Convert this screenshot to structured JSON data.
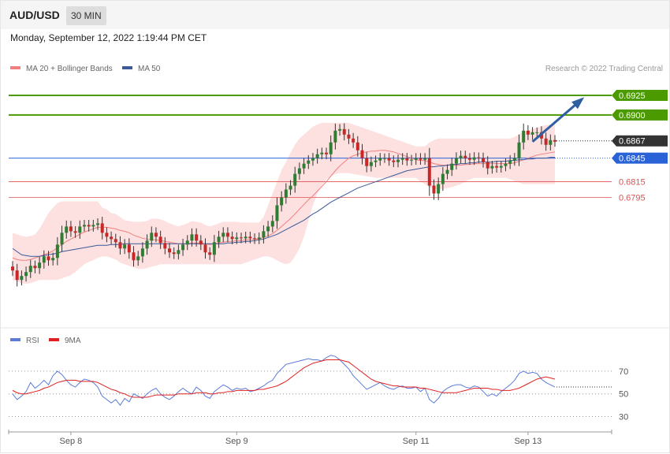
{
  "header": {
    "symbol": "AUD/USD",
    "timeframe": "30 MIN",
    "datetime": "Monday, September 12, 2022 1:19:44 PM CET"
  },
  "colors": {
    "price_up": "#2e7d32",
    "price_down": "#c62828",
    "bollinger_fill": "#fde0e0",
    "ma20": "#f08080",
    "ma50": "#3a5a9a",
    "target": "#4a9a00",
    "current": "#333333",
    "pivot": "#2a62d8",
    "support": "#e05050",
    "arrow": "#2f5fa0",
    "rsi": "#5a7bd8",
    "rsi_ma": "#e02020"
  },
  "chart_data": [
    {
      "type": "candlestick",
      "legend": [
        {
          "label": "MA 20 + Bollinger Bands",
          "color": "#f08080"
        },
        {
          "label": "MA 50",
          "color": "#3a5a9a"
        }
      ],
      "credit": "Research © 2022 Trading Central",
      "ylim": [
        0.6652,
        0.694
      ],
      "x_ticks": [
        {
          "label": "Sep 8",
          "index": 13
        },
        {
          "label": "Sep 9",
          "index": 50
        },
        {
          "label": "Sep 11",
          "index": 90
        },
        {
          "label": "Sep 13",
          "index": 115
        }
      ],
      "levels": [
        {
          "value": 0.6925,
          "label": "0.6925",
          "role": "resistance"
        },
        {
          "value": 0.69,
          "label": "0.6900",
          "role": "resistance"
        },
        {
          "value": 0.6867,
          "label": "0.6867",
          "role": "current"
        },
        {
          "value": 0.6845,
          "label": "0.6845",
          "role": "pivot"
        },
        {
          "value": 0.6815,
          "label": "0.6815",
          "role": "support"
        },
        {
          "value": 0.6795,
          "label": "0.6795",
          "role": "support"
        }
      ],
      "arrow": {
        "from": {
          "index": 116,
          "value": 0.6866
        },
        "to": {
          "index": 127,
          "value": 0.692
        }
      },
      "closes": [
        0.6702,
        0.669,
        0.6695,
        0.67,
        0.6708,
        0.6705,
        0.6712,
        0.672,
        0.6715,
        0.6718,
        0.6735,
        0.675,
        0.6758,
        0.6752,
        0.675,
        0.6758,
        0.676,
        0.6758,
        0.676,
        0.6762,
        0.675,
        0.6745,
        0.6742,
        0.6738,
        0.673,
        0.6735,
        0.6725,
        0.6715,
        0.672,
        0.673,
        0.674,
        0.675,
        0.6745,
        0.6737,
        0.673,
        0.6725,
        0.6723,
        0.6728,
        0.6735,
        0.674,
        0.6748,
        0.674,
        0.6735,
        0.6725,
        0.6722,
        0.6738,
        0.6745,
        0.675,
        0.6745,
        0.6742,
        0.6744,
        0.6743,
        0.6745,
        0.6743,
        0.6742,
        0.6744,
        0.6752,
        0.6758,
        0.6765,
        0.6785,
        0.6795,
        0.6805,
        0.681,
        0.6825,
        0.6832,
        0.6838,
        0.6842,
        0.6845,
        0.685,
        0.6852,
        0.685,
        0.6865,
        0.688,
        0.6882,
        0.6875,
        0.687,
        0.6865,
        0.6855,
        0.6845,
        0.6835,
        0.684,
        0.6842,
        0.6845,
        0.6845,
        0.6842,
        0.684,
        0.6843,
        0.6845,
        0.6842,
        0.6843,
        0.6845,
        0.6843,
        0.6845,
        0.681,
        0.68,
        0.6812,
        0.6825,
        0.683,
        0.6838,
        0.6845,
        0.6848,
        0.6845,
        0.6843,
        0.6846,
        0.6845,
        0.684,
        0.6832,
        0.6835,
        0.6833,
        0.6835,
        0.6838,
        0.6842,
        0.6845,
        0.6865,
        0.688,
        0.6875,
        0.6878,
        0.6878,
        0.687,
        0.6862,
        0.6868,
        0.6866
      ],
      "ma20": [
        0.6718,
        0.6716,
        0.6715,
        0.6715,
        0.6716,
        0.6718,
        0.672,
        0.6722,
        0.6724,
        0.6727,
        0.6731,
        0.6735,
        0.6739,
        0.6742,
        0.6745,
        0.6748,
        0.6751,
        0.6753,
        0.6755,
        0.6757,
        0.6757,
        0.6757,
        0.6756,
        0.6755,
        0.6753,
        0.6752,
        0.675,
        0.6747,
        0.6745,
        0.6743,
        0.6742,
        0.6741,
        0.6741,
        0.674,
        0.6739,
        0.6738,
        0.6737,
        0.6736,
        0.6736,
        0.6736,
        0.6737,
        0.6737,
        0.6737,
        0.6736,
        0.6735,
        0.6736,
        0.6737,
        0.6738,
        0.6739,
        0.6739,
        0.674,
        0.674,
        0.6741,
        0.6741,
        0.6742,
        0.6742,
        0.6744,
        0.6746,
        0.6749,
        0.6753,
        0.6758,
        0.6763,
        0.6768,
        0.6774,
        0.678,
        0.6786,
        0.6792,
        0.6797,
        0.6803,
        0.6809,
        0.6815,
        0.6822,
        0.6829,
        0.6835,
        0.684,
        0.6845,
        0.6848,
        0.685,
        0.6852,
        0.6853,
        0.6854,
        0.6854,
        0.6855,
        0.6855,
        0.6854,
        0.6853,
        0.6851,
        0.6849,
        0.6847,
        0.6845,
        0.6843,
        0.6842,
        0.6842,
        0.684,
        0.6838,
        0.6837,
        0.6836,
        0.6836,
        0.6836,
        0.6836,
        0.6836,
        0.6837,
        0.6837,
        0.6838,
        0.6838,
        0.6838,
        0.6838,
        0.6838,
        0.6838,
        0.6838,
        0.6838,
        0.6838,
        0.6839,
        0.6841,
        0.6843,
        0.6845,
        0.6847,
        0.6849,
        0.685,
        0.6851,
        0.6852,
        0.6853
      ],
      "bb_upper": [
        0.675,
        0.6748,
        0.6746,
        0.6745,
        0.6746,
        0.6748,
        0.6755,
        0.6765,
        0.6775,
        0.6782,
        0.6788,
        0.679,
        0.679,
        0.679,
        0.679,
        0.679,
        0.679,
        0.679,
        0.679,
        0.679,
        0.6782,
        0.678,
        0.6775,
        0.6774,
        0.677,
        0.6766,
        0.6765,
        0.6764,
        0.6764,
        0.6764,
        0.6765,
        0.6768,
        0.6768,
        0.6767,
        0.6765,
        0.6762,
        0.676,
        0.6758,
        0.676,
        0.6762,
        0.6765,
        0.6764,
        0.6763,
        0.676,
        0.6758,
        0.676,
        0.6762,
        0.6764,
        0.6764,
        0.6764,
        0.6764,
        0.6763,
        0.6763,
        0.6763,
        0.6763,
        0.6763,
        0.677,
        0.6785,
        0.68,
        0.6815,
        0.683,
        0.684,
        0.6852,
        0.6862,
        0.687,
        0.6875,
        0.688,
        0.6885,
        0.6888,
        0.689,
        0.689,
        0.689,
        0.689,
        0.689,
        0.689,
        0.689,
        0.6888,
        0.6886,
        0.6884,
        0.6882,
        0.688,
        0.6878,
        0.6876,
        0.6874,
        0.6872,
        0.687,
        0.6868,
        0.6866,
        0.6864,
        0.6862,
        0.686,
        0.686,
        0.686,
        0.6865,
        0.6868,
        0.687,
        0.687,
        0.687,
        0.687,
        0.687,
        0.687,
        0.687,
        0.687,
        0.687,
        0.687,
        0.687,
        0.687,
        0.687,
        0.687,
        0.687,
        0.687,
        0.687,
        0.6872,
        0.6876,
        0.6878,
        0.688,
        0.6882,
        0.6884,
        0.6886,
        0.6887,
        0.6888,
        0.6888
      ],
      "bb_lower": [
        0.669,
        0.6688,
        0.6686,
        0.6685,
        0.6686,
        0.6688,
        0.669,
        0.669,
        0.669,
        0.669,
        0.669,
        0.6692,
        0.6694,
        0.6696,
        0.67,
        0.6705,
        0.671,
        0.6713,
        0.6715,
        0.6718,
        0.672,
        0.672,
        0.6718,
        0.6716,
        0.6712,
        0.671,
        0.6708,
        0.6706,
        0.6704,
        0.6704,
        0.6705,
        0.6707,
        0.6708,
        0.671,
        0.671,
        0.671,
        0.671,
        0.671,
        0.671,
        0.671,
        0.671,
        0.671,
        0.671,
        0.671,
        0.671,
        0.671,
        0.671,
        0.671,
        0.671,
        0.671,
        0.671,
        0.671,
        0.6712,
        0.6714,
        0.6716,
        0.6718,
        0.672,
        0.672,
        0.6718,
        0.6715,
        0.6712,
        0.671,
        0.6712,
        0.672,
        0.673,
        0.6745,
        0.6765,
        0.6785,
        0.68,
        0.681,
        0.6818,
        0.6822,
        0.6825,
        0.6826,
        0.6826,
        0.6826,
        0.6825,
        0.6824,
        0.6823,
        0.6822,
        0.6821,
        0.682,
        0.682,
        0.682,
        0.682,
        0.682,
        0.682,
        0.682,
        0.682,
        0.682,
        0.682,
        0.6815,
        0.6812,
        0.6808,
        0.6806,
        0.6805,
        0.6806,
        0.6807,
        0.6808,
        0.681,
        0.6812,
        0.6815,
        0.6818,
        0.682,
        0.682,
        0.682,
        0.682,
        0.682,
        0.682,
        0.682,
        0.682,
        0.6818,
        0.6816,
        0.6814,
        0.6812,
        0.6812,
        0.6812,
        0.6812,
        0.6812,
        0.6812,
        0.6812,
        0.6812
      ],
      "ma50": [
        0.673,
        0.6726,
        0.6722,
        0.6721,
        0.672,
        0.672,
        0.672,
        0.6721,
        0.6722,
        0.6723,
        0.6724,
        0.6726,
        0.6727,
        0.6728,
        0.6729,
        0.673,
        0.6731,
        0.6732,
        0.6733,
        0.6734,
        0.6734,
        0.6734,
        0.6735,
        0.6735,
        0.6735,
        0.6736,
        0.6736,
        0.6736,
        0.6736,
        0.6736,
        0.6736,
        0.6736,
        0.6736,
        0.6736,
        0.6736,
        0.6736,
        0.6736,
        0.6736,
        0.6736,
        0.6736,
        0.6736,
        0.6736,
        0.6736,
        0.6736,
        0.6736,
        0.6736,
        0.6736,
        0.6736,
        0.6737,
        0.6737,
        0.6738,
        0.6738,
        0.6739,
        0.6739,
        0.674,
        0.6741,
        0.6742,
        0.6744,
        0.6746,
        0.6748,
        0.6751,
        0.6754,
        0.6757,
        0.676,
        0.6763,
        0.6766,
        0.677,
        0.6774,
        0.6777,
        0.6781,
        0.6785,
        0.6789,
        0.6792,
        0.6795,
        0.6798,
        0.6801,
        0.6804,
        0.6807,
        0.6809,
        0.6811,
        0.6813,
        0.6815,
        0.6817,
        0.6819,
        0.6821,
        0.6823,
        0.6825,
        0.6827,
        0.6829,
        0.683,
        0.6831,
        0.6832,
        0.6833,
        0.6834,
        0.6834,
        0.6835,
        0.6835,
        0.6836,
        0.6837,
        0.6837,
        0.6838,
        0.6838,
        0.6839,
        0.6839,
        0.684,
        0.684,
        0.684,
        0.684,
        0.6841,
        0.6841,
        0.6841,
        0.6842,
        0.6842,
        0.6843,
        0.6843,
        0.6844,
        0.6844,
        0.6845,
        0.6845,
        0.6845,
        0.6846,
        0.6846
      ]
    },
    {
      "type": "line",
      "legend": [
        {
          "label": "RSI",
          "color": "#5a7bd8"
        },
        {
          "label": "9MA",
          "color": "#e02020"
        }
      ],
      "ylim": [
        22,
        88
      ],
      "y_ticks": [
        70,
        50,
        30
      ],
      "rsi": [
        50,
        45,
        48,
        52,
        60,
        55,
        58,
        62,
        58,
        66,
        70,
        67,
        62,
        58,
        56,
        60,
        63,
        62,
        60,
        56,
        48,
        45,
        42,
        45,
        40,
        46,
        43,
        50,
        48,
        46,
        50,
        53,
        55,
        50,
        47,
        45,
        48,
        52,
        55,
        52,
        50,
        56,
        53,
        48,
        46,
        52,
        55,
        58,
        56,
        53,
        55,
        54,
        55,
        52,
        53,
        55,
        57,
        60,
        62,
        68,
        72,
        76,
        77,
        78,
        79,
        80,
        81,
        80,
        80,
        79,
        82,
        84,
        83,
        80,
        76,
        72,
        66,
        62,
        58,
        54,
        56,
        58,
        60,
        57,
        55,
        54,
        56,
        57,
        55,
        55,
        56,
        52,
        55,
        45,
        42,
        46,
        52,
        55,
        57,
        58,
        58,
        56,
        55,
        57,
        56,
        52,
        48,
        50,
        48,
        52,
        55,
        58,
        62,
        68,
        70,
        68,
        69,
        68,
        63,
        60,
        58,
        56
      ],
      "rsi_ma": [
        53,
        51,
        50,
        50,
        51,
        52,
        53,
        55,
        56,
        58,
        60,
        61,
        62,
        62,
        62,
        61,
        61,
        61,
        61,
        60,
        58,
        56,
        54,
        53,
        51,
        50,
        48,
        47,
        47,
        47,
        47,
        48,
        49,
        49,
        49,
        49,
        49,
        50,
        50,
        50,
        50,
        51,
        51,
        51,
        50,
        50,
        51,
        51,
        52,
        52,
        53,
        53,
        53,
        53,
        53,
        54,
        54,
        55,
        56,
        57,
        59,
        61,
        64,
        67,
        70,
        73,
        75,
        77,
        78,
        79,
        80,
        80,
        80,
        80,
        79,
        78,
        75,
        72,
        69,
        66,
        63,
        61,
        60,
        59,
        58,
        57,
        57,
        56,
        56,
        56,
        56,
        55,
        55,
        54,
        53,
        52,
        51,
        51,
        51,
        51,
        52,
        53,
        54,
        55,
        55,
        55,
        55,
        54,
        54,
        53,
        53,
        53,
        54,
        55,
        57,
        59,
        61,
        63,
        64,
        65,
        64,
        63
      ]
    }
  ]
}
